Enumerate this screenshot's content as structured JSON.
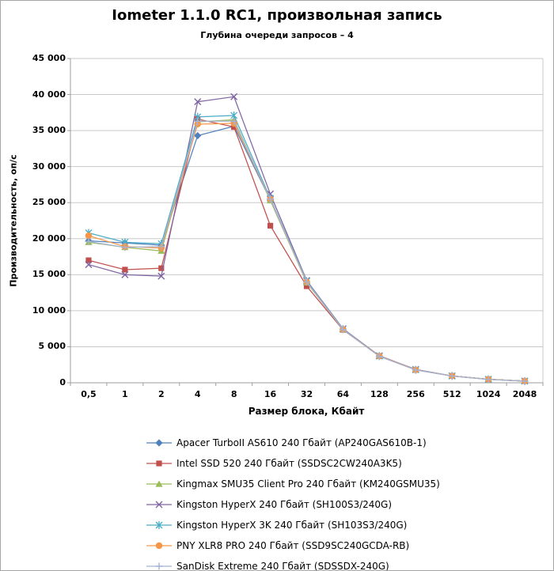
{
  "title": "Iometer 1.1.0 RC1, произвольная запись",
  "subtitle": "Глубина очереди запросов – 4",
  "chart_data": {
    "type": "line",
    "title": "Iometer 1.1.0 RC1, произвольная запись",
    "subtitle": "Глубина очереди запросов – 4",
    "xlabel": "Размер блока, Кбайт",
    "ylabel": "Производительность,  оп/с",
    "x_tick_labels": [
      "0,5",
      "1",
      "2",
      "4",
      "8",
      "16",
      "32",
      "64",
      "128",
      "256",
      "512",
      "1024",
      "2048"
    ],
    "y_tick_labels": [
      "0",
      "5 000",
      "10 000",
      "15 000",
      "20 000",
      "25 000",
      "30 000",
      "35 000",
      "40 000",
      "45 000"
    ],
    "ylim": [
      0,
      45000
    ],
    "y_step": 5000,
    "grid": true,
    "legend_position": "bottom",
    "categories": [
      0.5,
      1,
      2,
      4,
      8,
      16,
      32,
      64,
      128,
      256,
      512,
      1024,
      2048
    ],
    "series": [
      {
        "name": "Apacer TurboII AS610 240 Гбайт (AP240GAS610B-1)",
        "color": "#4F81BD",
        "marker": "diamond",
        "values": [
          19700,
          19400,
          19100,
          34300,
          35600,
          25400,
          14000,
          7400,
          3700,
          1800,
          950,
          480,
          240
        ]
      },
      {
        "name": "Intel SSD 520 240 Гбайт (SSDSC2CW240A3K5)",
        "color": "#C0504D",
        "marker": "square",
        "values": [
          17000,
          15700,
          15900,
          36600,
          35500,
          21800,
          13400,
          7350,
          3700,
          1800,
          950,
          480,
          240
        ]
      },
      {
        "name": "Kingmax SMU35 Client Pro 240 Гбайт (KM240GSMU35)",
        "color": "#9BBB59",
        "marker": "triangle",
        "values": [
          19500,
          18800,
          18300,
          36200,
          36500,
          25300,
          13900,
          7400,
          3700,
          1800,
          950,
          480,
          240
        ]
      },
      {
        "name": "Kingston HyperX 240 Гбайт (SH100S3/240G)",
        "color": "#8064A2",
        "marker": "x",
        "values": [
          16400,
          15000,
          14800,
          39000,
          39700,
          26200,
          14200,
          7500,
          3750,
          1850,
          950,
          480,
          240
        ]
      },
      {
        "name": "Kingston HyperX 3K 240 Гбайт (SH103S3/240G)",
        "color": "#4BACC6",
        "marker": "asterisk",
        "values": [
          20800,
          19500,
          19300,
          36900,
          37100,
          25600,
          14100,
          7450,
          3700,
          1800,
          950,
          480,
          240
        ]
      },
      {
        "name": "PNY XLR8 PRO 240 Гбайт (SSD9SC240GCDA-RB)",
        "color": "#F79646",
        "marker": "circle",
        "values": [
          20400,
          18900,
          18700,
          35900,
          36000,
          25500,
          14000,
          7400,
          3700,
          1800,
          950,
          480,
          240
        ]
      },
      {
        "name": "SanDisk Extreme 240 Гбайт (SDSSDX-240G)",
        "color": "#A5B3D4",
        "marker": "plus",
        "values": [
          19600,
          18800,
          18900,
          36300,
          36300,
          25500,
          14000,
          7400,
          3650,
          1780,
          930,
          460,
          220
        ]
      }
    ],
    "colors": {
      "gridline": "#C9C9C9",
      "axis": "#9E9E9E",
      "background": "#FFFFFF",
      "border": "#A6A6A6"
    }
  }
}
